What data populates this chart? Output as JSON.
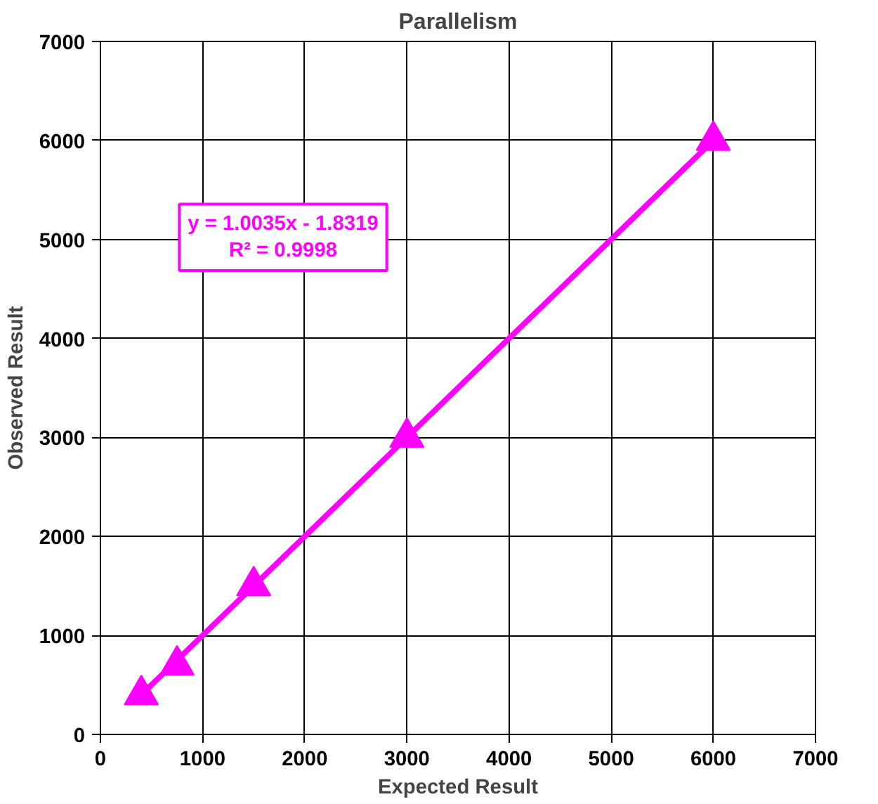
{
  "chart_data": {
    "type": "scatter",
    "title": "Parallelism",
    "xlabel": "Expected Result",
    "ylabel": "Observed Result",
    "xlim": [
      0,
      7000
    ],
    "ylim": [
      0,
      7000
    ],
    "xticks": [
      0,
      1000,
      2000,
      3000,
      4000,
      5000,
      6000,
      7000
    ],
    "yticks": [
      0,
      1000,
      2000,
      3000,
      4000,
      5000,
      6000,
      7000
    ],
    "grid": true,
    "series": [
      {
        "color": "#ff00ff",
        "marker": "triangle",
        "x": [
          400,
          750,
          1500,
          3000,
          6000
        ],
        "values": [
          400,
          700,
          1500,
          3000,
          6000
        ]
      },
      {
        "type": "line",
        "color": "#ff00ff",
        "x": [
          400,
          6000
        ],
        "values": [
          400,
          6000
        ],
        "line_style": "solid"
      }
    ],
    "annotations": [
      "y = 1.0035x - 1.8319\nR² = 0.9998"
    ]
  }
}
